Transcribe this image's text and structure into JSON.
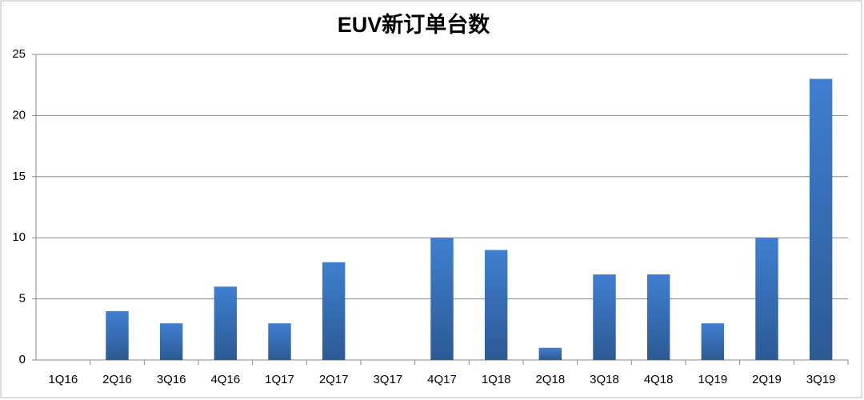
{
  "chart_data": {
    "type": "bar",
    "title": "EUV新订单台数",
    "categories": [
      "1Q16",
      "2Q16",
      "3Q16",
      "4Q16",
      "1Q17",
      "2Q17",
      "3Q17",
      "4Q17",
      "1Q18",
      "2Q18",
      "3Q18",
      "4Q18",
      "1Q19",
      "2Q19",
      "3Q19"
    ],
    "values": [
      0,
      4,
      3,
      6,
      3,
      8,
      0,
      10,
      9,
      1,
      7,
      7,
      3,
      10,
      23
    ],
    "color": "#3f7fd0",
    "ylim": [
      0,
      25
    ],
    "yticks": [
      0,
      5,
      10,
      15,
      20,
      25
    ],
    "grid": true
  }
}
